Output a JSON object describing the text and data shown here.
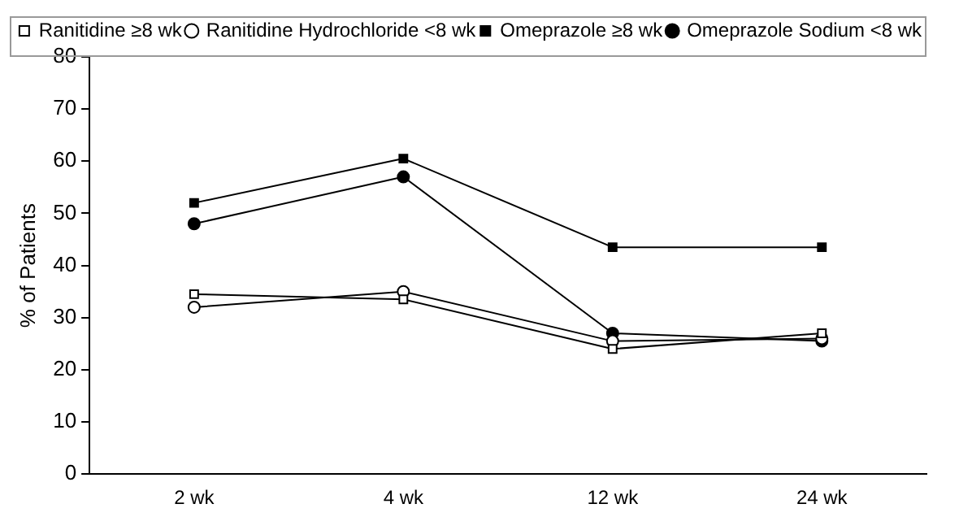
{
  "chart_data": {
    "type": "line",
    "categories": [
      "2 wk",
      "4 wk",
      "12 wk",
      "24 wk"
    ],
    "ylabel": "% of Patients",
    "ylim": [
      0,
      80
    ],
    "yticks": [
      0,
      10,
      20,
      30,
      40,
      50,
      60,
      70,
      80
    ],
    "grid": false,
    "legend": "top right",
    "line_style": "solid",
    "series": [
      {
        "name": "Omeprazole Sodium <8 wk",
        "color": "#000000",
        "marker": "circle",
        "values": [
          48,
          57,
          27,
          25.5
        ]
      },
      {
        "name": "Omeprazole ≥8 wk",
        "color": "#000000",
        "marker": "square",
        "values": [
          52,
          60.5,
          43.5,
          43.5
        ]
      },
      {
        "name": "Ranitidine Hydrochloride <8 wk",
        "color": "#000000",
        "marker": "circle",
        "values": [
          32,
          35,
          25.5,
          26
        ]
      },
      {
        "name": "Ranitidine ≥8 wk",
        "color": "#000000",
        "marker": "square",
        "values": [
          34.5,
          33.5,
          24,
          27
        ]
      }
    ]
  }
}
